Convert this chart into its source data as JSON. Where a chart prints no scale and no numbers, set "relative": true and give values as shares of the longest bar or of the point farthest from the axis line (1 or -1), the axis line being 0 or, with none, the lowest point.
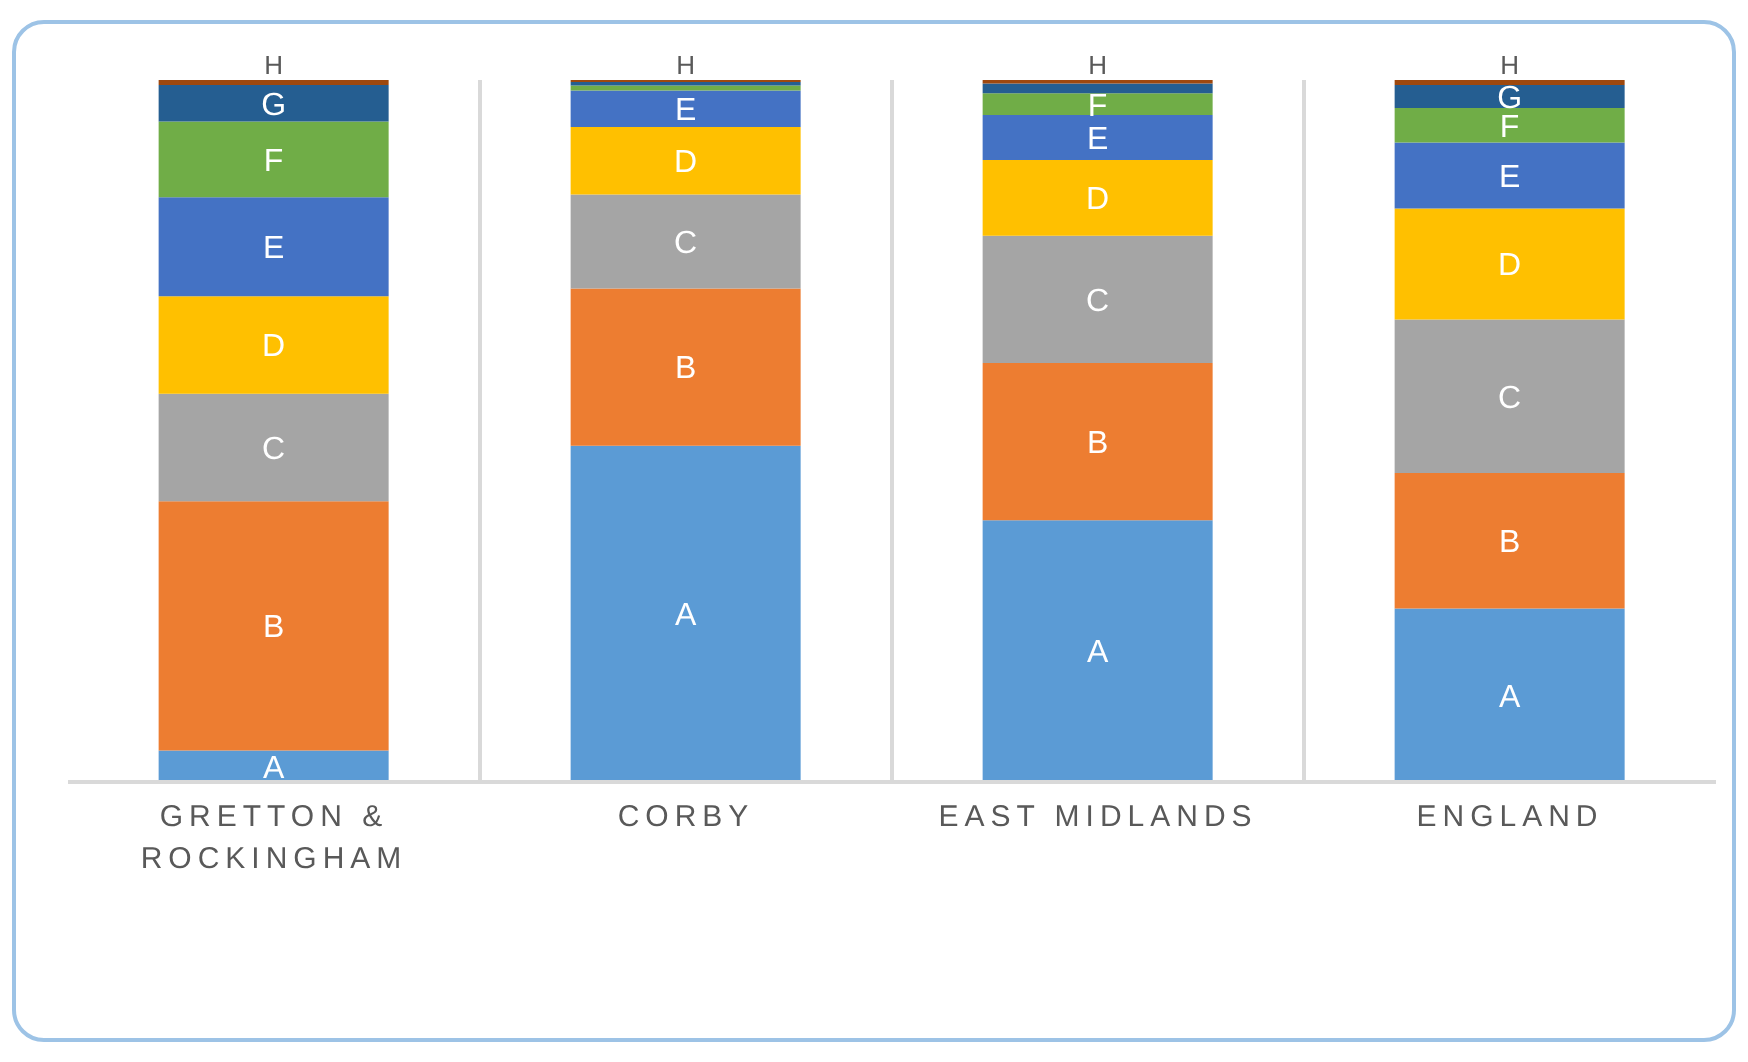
{
  "chart_data": {
    "type": "bar",
    "stacked": true,
    "relative": true,
    "grid": "x",
    "legend": false,
    "categories": [
      "GRETTON & ROCKINGHAM",
      "CORBY",
      "EAST MIDLANDS",
      "ENGLAND"
    ],
    "series": [
      {
        "name": "A",
        "color": "#5b9bd5",
        "values": [
          0.045,
          0.479,
          0.373,
          0.247
        ]
      },
      {
        "name": "B",
        "color": "#ed7d31",
        "values": [
          0.355,
          0.224,
          0.224,
          0.193
        ]
      },
      {
        "name": "C",
        "color": "#a5a5a5",
        "values": [
          0.153,
          0.134,
          0.181,
          0.219
        ]
      },
      {
        "name": "D",
        "color": "#ffc000",
        "values": [
          0.139,
          0.096,
          0.108,
          0.158
        ]
      },
      {
        "name": "E",
        "color": "#4472c4",
        "values": [
          0.141,
          0.052,
          0.064,
          0.094
        ]
      },
      {
        "name": "F",
        "color": "#70ad47",
        "values": [
          0.108,
          0.007,
          0.031,
          0.049
        ]
      },
      {
        "name": "G",
        "color": "#255e91",
        "values": [
          0.052,
          0.005,
          0.014,
          0.033
        ]
      },
      {
        "name": "H",
        "color": "#9e480e",
        "values": [
          0.007,
          0.003,
          0.005,
          0.007
        ]
      }
    ]
  }
}
